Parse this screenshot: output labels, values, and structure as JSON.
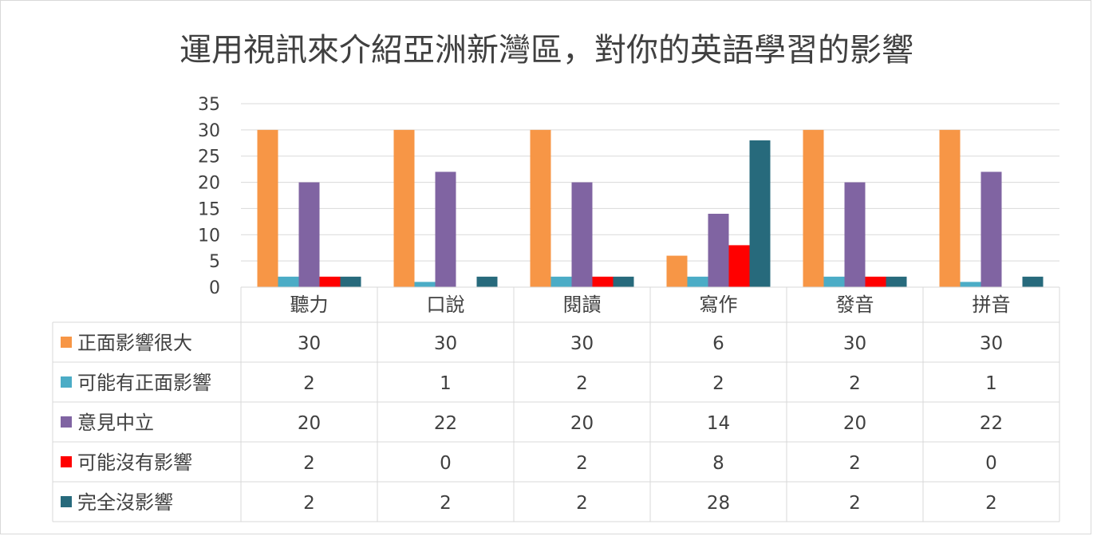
{
  "chart_data": {
    "type": "bar",
    "title": "運用視訊來介紹亞洲新灣區，對你的英語學習的影響",
    "categories": [
      "聽力",
      "口說",
      "閱讀",
      "寫作",
      "發音",
      "拼音"
    ],
    "ylim": [
      0,
      35
    ],
    "yticks": [
      0,
      5,
      10,
      15,
      20,
      25,
      30,
      35
    ],
    "grid": true,
    "legend": "data-table",
    "series": [
      {
        "name": "正面影響很大",
        "color": "#f79646",
        "values": [
          30,
          30,
          30,
          6,
          30,
          30
        ]
      },
      {
        "name": "可能有正面影響",
        "color": "#4bacc6",
        "values": [
          2,
          1,
          2,
          2,
          2,
          1
        ]
      },
      {
        "name": "意見中立",
        "color": "#8064a2",
        "values": [
          20,
          22,
          20,
          14,
          20,
          22
        ]
      },
      {
        "name": "可能沒有影響",
        "color": "#ff0000",
        "values": [
          2,
          0,
          2,
          8,
          2,
          0
        ]
      },
      {
        "name": "完全沒影響",
        "color": "#276a7c",
        "values": [
          2,
          2,
          2,
          28,
          2,
          2
        ]
      }
    ]
  }
}
